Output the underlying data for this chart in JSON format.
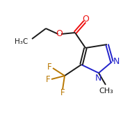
{
  "bg_color": "#ffffff",
  "bond_color": "#1a1a1a",
  "o_color": "#ee1111",
  "n_color": "#2222cc",
  "cf3_color": "#b87700",
  "f_color": "#b87700",
  "lw": 1.4,
  "figsize": [
    2.0,
    2.0
  ],
  "dpi": 100,
  "xlim": [
    0,
    10
  ],
  "ylim": [
    0,
    10
  ]
}
